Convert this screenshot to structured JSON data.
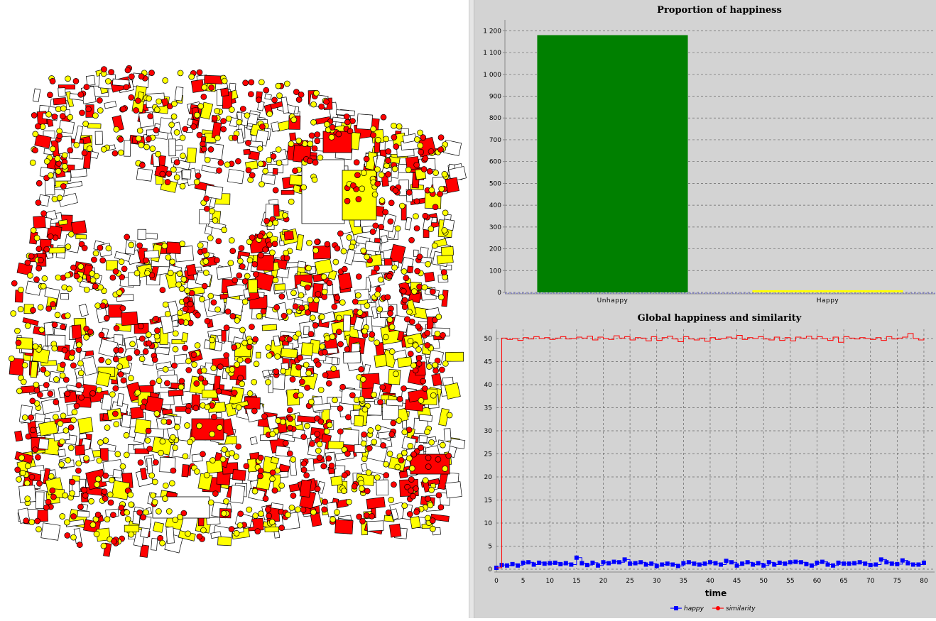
{
  "map": {
    "building_fill": "#ffffff",
    "group_a_color": "#ff0000",
    "group_b_color": "#ffff00",
    "outline_color": "#000000"
  },
  "chart_data": [
    {
      "type": "bar",
      "title": "Proportion of happiness",
      "categories": [
        "Unhappy",
        "Happy"
      ],
      "values": [
        1180,
        10
      ],
      "colors": [
        "#008000",
        "#ffff00"
      ],
      "ylim": [
        0,
        1250
      ],
      "yticks": [
        0,
        100,
        200,
        300,
        400,
        500,
        600,
        700,
        800,
        900,
        1000,
        1100,
        1200
      ],
      "ytick_labels": [
        "0",
        "100",
        "200",
        "300",
        "400",
        "500",
        "600",
        "700",
        "800",
        "900",
        "1 000",
        "1 100",
        "1 200"
      ],
      "xlabel": "",
      "ylabel": "",
      "grid": true
    },
    {
      "type": "line",
      "title": "Global happiness and similarity",
      "xlabel": "time",
      "ylabel": "",
      "xlim": [
        0,
        82
      ],
      "ylim": [
        0,
        52
      ],
      "xticks": [
        0,
        5,
        10,
        15,
        20,
        25,
        30,
        35,
        40,
        45,
        50,
        55,
        60,
        65,
        70,
        75,
        80
      ],
      "yticks": [
        0,
        5,
        10,
        15,
        20,
        25,
        30,
        35,
        40,
        45,
        50
      ],
      "grid": true,
      "legend_position": "bottom",
      "series": [
        {
          "name": "happy",
          "color": "#0000ff",
          "marker": "square",
          "values": [
            0.3,
            0.9,
            0.8,
            1.1,
            0.8,
            1.4,
            1.5,
            1.0,
            1.4,
            1.2,
            1.3,
            1.4,
            1.1,
            1.3,
            1.0,
            2.5,
            1.3,
            0.9,
            1.4,
            0.8,
            1.5,
            1.3,
            1.6,
            1.5,
            2.1,
            1.2,
            1.3,
            1.5,
            1.0,
            1.2,
            0.7,
            1.0,
            1.2,
            1.0,
            0.7,
            1.3,
            1.5,
            1.2,
            1.0,
            1.2,
            1.5,
            1.3,
            1.0,
            1.8,
            1.5,
            0.8,
            1.2,
            1.5,
            1.0,
            1.3,
            0.8,
            1.5,
            1.0,
            1.4,
            1.2,
            1.5,
            1.6,
            1.5,
            1.1,
            0.8,
            1.4,
            1.6,
            1.0,
            0.8,
            1.4,
            1.2,
            1.2,
            1.3,
            1.5,
            1.2,
            0.9,
            1.0,
            2.1,
            1.5,
            1.2,
            1.1,
            1.9,
            1.3,
            1.0,
            1.0,
            1.4
          ]
        },
        {
          "name": "similarity",
          "color": "#ff0000",
          "marker": "circle",
          "values": [
            0.3,
            50.1,
            49.8,
            50.0,
            49.6,
            50.2,
            49.9,
            50.4,
            50.0,
            50.2,
            49.8,
            50.1,
            50.4,
            49.9,
            50.0,
            50.3,
            50.1,
            50.5,
            49.7,
            50.3,
            50.0,
            49.8,
            50.6,
            50.1,
            50.4,
            49.7,
            50.2,
            50.1,
            49.5,
            50.4,
            49.6,
            50.2,
            50.5,
            49.9,
            49.3,
            50.4,
            49.9,
            49.7,
            50.1,
            49.4,
            50.2,
            49.8,
            50.0,
            50.3,
            50.1,
            50.7,
            49.8,
            50.2,
            50.0,
            50.4,
            49.9,
            49.7,
            50.3,
            49.6,
            50.2,
            49.5,
            50.3,
            50.1,
            50.5,
            49.9,
            50.4,
            50.0,
            49.6,
            50.3,
            49.2,
            50.4,
            50.1,
            49.9,
            50.2,
            50.0,
            49.8,
            50.2,
            49.6,
            50.4,
            49.9,
            50.1,
            50.3,
            51.1,
            50.0,
            49.7,
            50.1
          ]
        }
      ]
    }
  ]
}
